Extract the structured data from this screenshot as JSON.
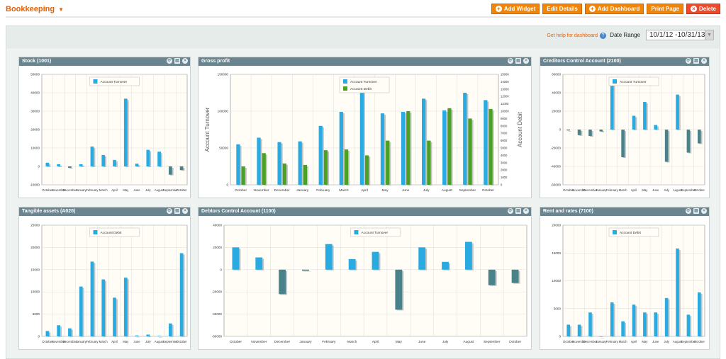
{
  "page": {
    "title": "Bookkeeping"
  },
  "toolbar": {
    "add_widget": "Add Widget",
    "edit_details": "Edit Details",
    "add_dashboard": "Add Dashboard",
    "print_page": "Print Page",
    "delete": "Delete"
  },
  "header": {
    "help_link": "Get help for dashboard",
    "date_range_label": "Date Range",
    "date_range_value": "10/1/12 -10/31/13"
  },
  "colors": {
    "accent": "#eb5e00",
    "turnover": "#29abe2",
    "debit": "#4aa124",
    "negative": "#4a8289",
    "header_bar": "#6b8590"
  },
  "chart_data": [
    {
      "type": "bar",
      "title": "Stock (1001)",
      "categories": [
        "October",
        "November",
        "December",
        "January",
        "February",
        "March",
        "April",
        "May",
        "June",
        "July",
        "August",
        "September",
        "October"
      ],
      "series": [
        {
          "name": "Account Turnover",
          "values": [
            2000,
            1200,
            -800,
            1200,
            10800,
            6200,
            3500,
            36800,
            1500,
            9000,
            8000,
            -4500,
            -2000
          ]
        }
      ],
      "ylim": [
        -10000,
        50000
      ],
      "yticks": [
        -10000,
        0,
        10000,
        20000,
        30000,
        40000,
        50000
      ]
    },
    {
      "type": "bar",
      "title": "Gross profit",
      "categories": [
        "October",
        "November",
        "December",
        "January",
        "February",
        "March",
        "April",
        "May",
        "June",
        "July",
        "August",
        "September",
        "October"
      ],
      "series": [
        {
          "name": "Account Turnover",
          "values": [
            55000,
            64000,
            58000,
            59000,
            80000,
            99000,
            130000,
            97000,
            99000,
            117000,
            101000,
            125000,
            115000
          ]
        },
        {
          "name": "Account Debit",
          "values": [
            2500,
            4300,
            2900,
            2700,
            4700,
            4800,
            4000,
            6000,
            10000,
            6000,
            10400,
            9000,
            10300
          ]
        }
      ],
      "ylim": [
        0,
        150000
      ],
      "yticks": [
        0,
        50000,
        100000,
        150000
      ],
      "y2lim": [
        0,
        15000
      ],
      "y2ticks": [
        0,
        1000,
        2000,
        3000,
        4000,
        5000,
        6000,
        7000,
        8000,
        9000,
        10000,
        11000,
        12000,
        13000,
        14000,
        15000
      ],
      "ylabel": "Account Turnover",
      "y2label": "Account Debit"
    },
    {
      "type": "bar",
      "title": "Creditors Control Account (2100)",
      "categories": [
        "October",
        "November",
        "December",
        "January",
        "February",
        "March",
        "April",
        "May",
        "June",
        "July",
        "August",
        "September",
        "October"
      ],
      "series": [
        {
          "name": "Account Turnover",
          "values": [
            -1000,
            -6000,
            -7000,
            -2000,
            52000,
            -30000,
            15000,
            30000,
            5000,
            -35000,
            38000,
            -25000,
            -15000
          ]
        }
      ],
      "ylim": [
        -60000,
        60000
      ],
      "yticks": [
        -60000,
        -40000,
        -20000,
        0,
        20000,
        40000,
        60000
      ]
    },
    {
      "type": "bar",
      "title": "Tangible assets (A020)",
      "categories": [
        "October",
        "November",
        "December",
        "January",
        "February",
        "March",
        "April",
        "May",
        "June",
        "July",
        "August",
        "September",
        "October"
      ],
      "series": [
        {
          "name": "Account Debit",
          "values": [
            1200,
            2500,
            1800,
            11200,
            16800,
            12800,
            8700,
            13200,
            200,
            400,
            100,
            2900,
            18700
          ]
        }
      ],
      "ylim": [
        0,
        25000
      ],
      "yticks": [
        0,
        5000,
        10000,
        15000,
        20000,
        25000
      ]
    },
    {
      "type": "bar",
      "title": "Debtors Control Account (1100)",
      "categories": [
        "October",
        "November",
        "December",
        "January",
        "February",
        "March",
        "April",
        "May",
        "June",
        "July",
        "August",
        "September",
        "October"
      ],
      "series": [
        {
          "name": "Account Turnover",
          "values": [
            20000,
            11000,
            -22000,
            -1000,
            23000,
            9500,
            16000,
            -36000,
            20000,
            7000,
            25000,
            -14000,
            -12000
          ]
        }
      ],
      "ylim": [
        -60000,
        40000
      ],
      "yticks": [
        -60000,
        -40000,
        -20000,
        0,
        20000,
        40000
      ]
    },
    {
      "type": "bar",
      "title": "Rent and rates (7100)",
      "categories": [
        "October",
        "November",
        "December",
        "January",
        "February",
        "March",
        "April",
        "May",
        "June",
        "July",
        "August",
        "September",
        "October"
      ],
      "series": [
        {
          "name": "Account Debit",
          "values": [
            2100,
            2100,
            4300,
            0,
            6100,
            2700,
            5700,
            4300,
            4300,
            6900,
            15800,
            3900,
            7900
          ]
        }
      ],
      "ylim": [
        0,
        20000
      ],
      "yticks": [
        0,
        5000,
        10000,
        15000,
        20000
      ]
    }
  ]
}
